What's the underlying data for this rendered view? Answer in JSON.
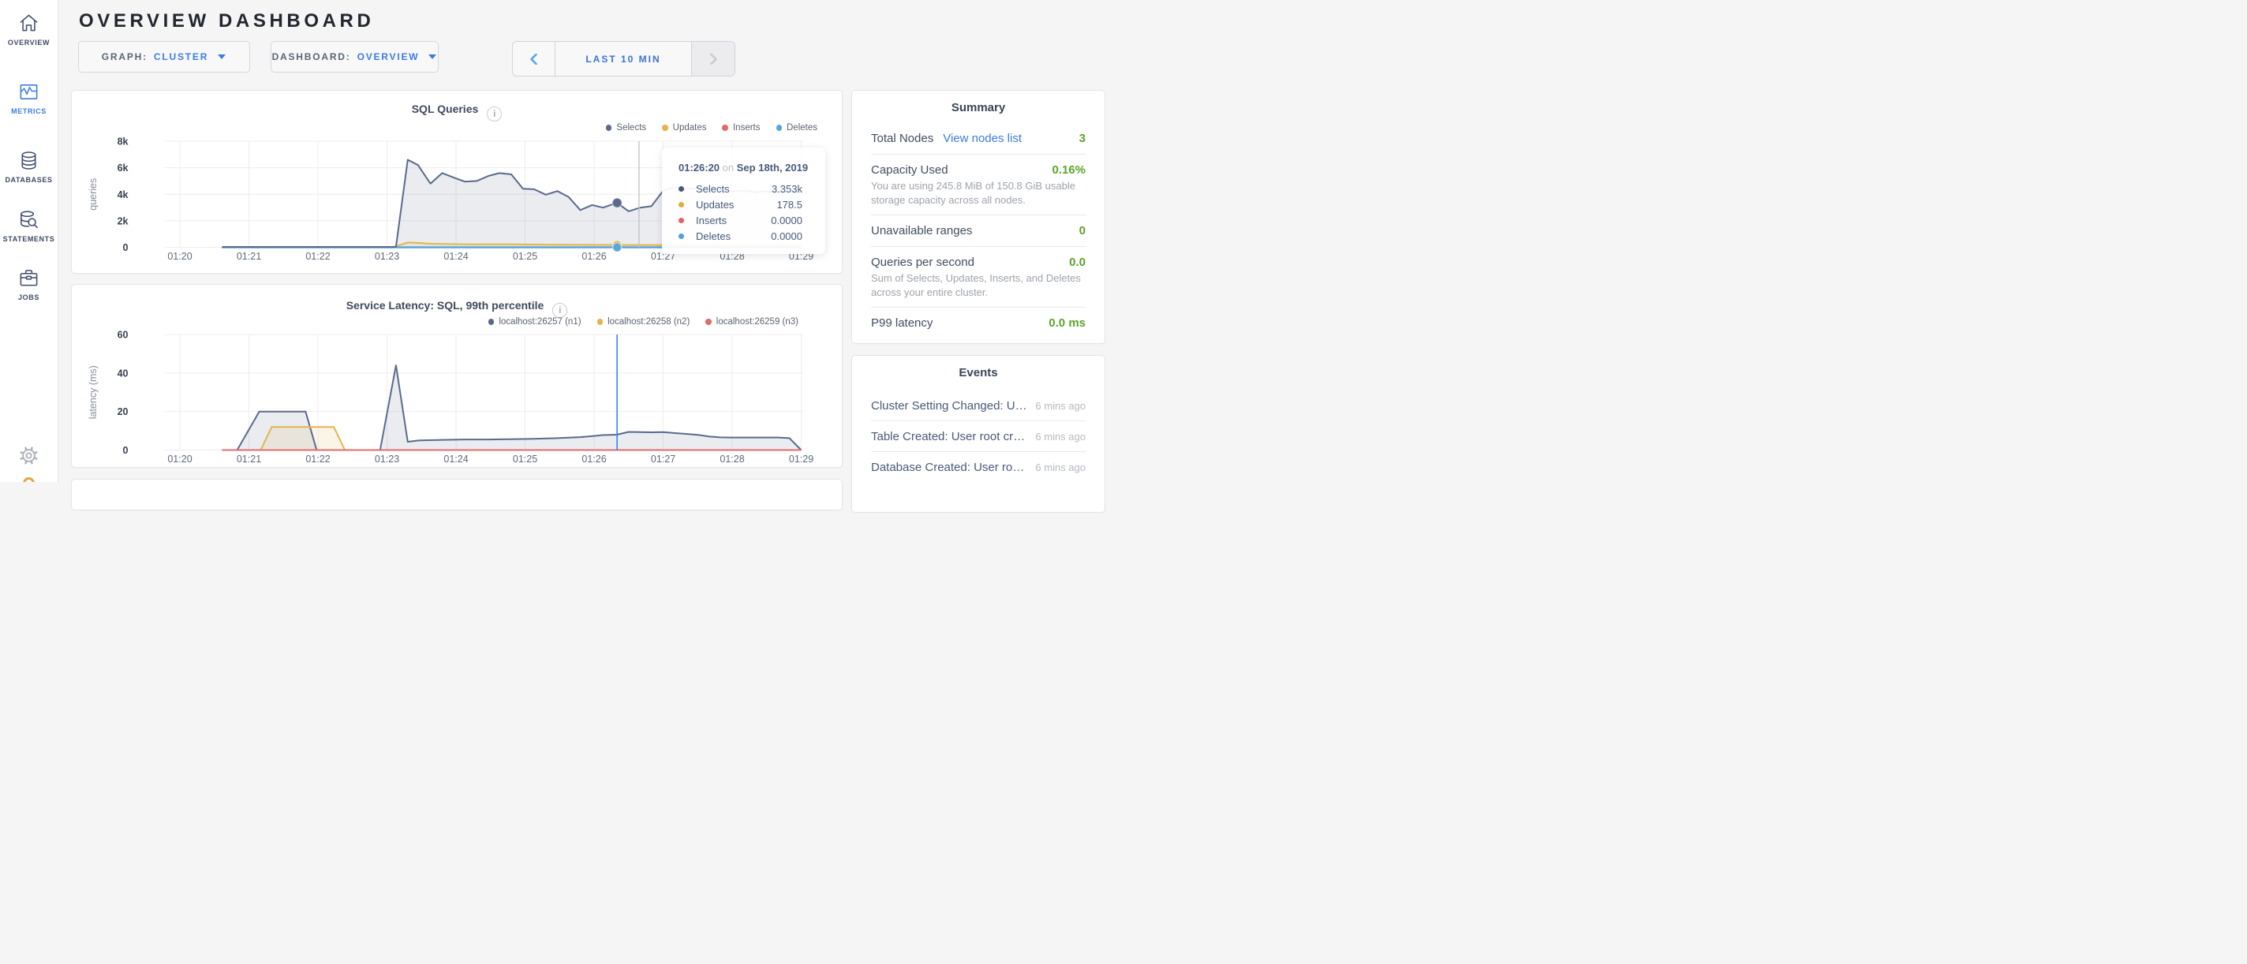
{
  "app": {
    "background": "#f5f5f6",
    "accent_blue": "#3b7ce2",
    "green": "#5ba32a"
  },
  "header": {
    "title": "OVERVIEW DASHBOARD"
  },
  "sidebar": {
    "items": [
      {
        "label": "OVERVIEW",
        "icon": "home-icon",
        "active": false
      },
      {
        "label": "METRICS",
        "icon": "metrics-icon",
        "active": true
      },
      {
        "label": "DATABASES",
        "icon": "databases-icon",
        "active": false
      },
      {
        "label": "STATEMENTS",
        "icon": "statements-icon",
        "active": false
      },
      {
        "label": "JOBS",
        "icon": "jobs-icon",
        "active": false
      }
    ],
    "footer": {
      "gear_icon": "gear-icon",
      "status_icon": "yellow-circle-icon"
    }
  },
  "controls": {
    "graph": {
      "label": "GRAPH:",
      "value": "CLUSTER"
    },
    "dashboard": {
      "label": "DASHBOARD:",
      "value": "OVERVIEW"
    },
    "time": {
      "label": "LAST 10 MIN",
      "prev_icon": "chevron-left-icon",
      "next_icon": "chevron-right-icon"
    }
  },
  "chart_data": [
    {
      "type": "area",
      "title": "SQL Queries",
      "ylabel": "queries",
      "ylim": [
        0,
        8000
      ],
      "x_unit": "minutes after 01:20",
      "x_domain": [
        -0.223,
        9.034
      ],
      "grid": true,
      "legend_position": "top-right",
      "y_ticks": [
        {
          "v": 0,
          "label": "0"
        },
        {
          "v": 2000,
          "label": "2k"
        },
        {
          "v": 4000,
          "label": "4k"
        },
        {
          "v": 6000,
          "label": "6k"
        },
        {
          "v": 8000,
          "label": "8k"
        }
      ],
      "x_ticks": [
        {
          "t": 0,
          "label": "01:20"
        },
        {
          "t": 1,
          "label": "01:21"
        },
        {
          "t": 2,
          "label": "01:22"
        },
        {
          "t": 3,
          "label": "01:23"
        },
        {
          "t": 4,
          "label": "01:24"
        },
        {
          "t": 5,
          "label": "01:25"
        },
        {
          "t": 6,
          "label": "01:26"
        },
        {
          "t": 7,
          "label": "01:27"
        },
        {
          "t": 8,
          "label": "01:28"
        },
        {
          "t": 9,
          "label": "01:29"
        }
      ],
      "series": [
        {
          "name": "Selects",
          "color": "#5a6a8c",
          "fill": "rgba(90,106,140,0.13)",
          "z": 10,
          "points": [
            [
              0.61,
              30
            ],
            [
              1.2,
              30
            ],
            [
              1.7,
              30
            ],
            [
              2.2,
              30
            ],
            [
              2.7,
              30
            ],
            [
              3.08,
              30
            ],
            [
              3.13,
              40
            ],
            [
              3.3,
              6600
            ],
            [
              3.45,
              6200
            ],
            [
              3.63,
              4800
            ],
            [
              3.8,
              5600
            ],
            [
              3.97,
              5250
            ],
            [
              4.13,
              4950
            ],
            [
              4.3,
              5000
            ],
            [
              4.47,
              5380
            ],
            [
              4.63,
              5600
            ],
            [
              4.8,
              5500
            ],
            [
              4.97,
              4420
            ],
            [
              5.13,
              4380
            ],
            [
              5.3,
              3970
            ],
            [
              5.47,
              4240
            ],
            [
              5.63,
              3800
            ],
            [
              5.8,
              2810
            ],
            [
              5.97,
              3190
            ],
            [
              6.13,
              2990
            ],
            [
              6.33,
              3353
            ],
            [
              6.5,
              2720
            ],
            [
              6.67,
              2990
            ],
            [
              6.83,
              3100
            ],
            [
              7.0,
              4260
            ],
            [
              7.17,
              4550
            ],
            [
              7.33,
              4380
            ],
            [
              7.5,
              4480
            ],
            [
              7.67,
              4300
            ],
            [
              7.83,
              4380
            ],
            [
              8.0,
              4220
            ],
            [
              8.17,
              4280
            ],
            [
              8.33,
              4150
            ],
            [
              8.5,
              4230
            ],
            [
              8.67,
              4100
            ],
            [
              8.83,
              4180
            ],
            [
              9.0,
              4120
            ]
          ]
        },
        {
          "name": "Updates",
          "color": "#e3b54a",
          "fill": "rgba(227,181,74,0.13)",
          "points": [
            [
              0.61,
              0
            ],
            [
              1.5,
              0
            ],
            [
              2.2,
              0
            ],
            [
              3.08,
              0
            ],
            [
              3.3,
              360
            ],
            [
              3.47,
              330
            ],
            [
              3.63,
              270
            ],
            [
              3.97,
              235
            ],
            [
              4.3,
              225
            ],
            [
              4.63,
              230
            ],
            [
              4.97,
              215
            ],
            [
              5.3,
              200
            ],
            [
              5.63,
              190
            ],
            [
              5.97,
              182
            ],
            [
              6.33,
              178.5
            ],
            [
              6.67,
              172
            ],
            [
              7.0,
              170
            ],
            [
              7.5,
              168
            ],
            [
              8.0,
              170
            ],
            [
              8.5,
              166
            ],
            [
              9.0,
              170
            ]
          ]
        },
        {
          "name": "Inserts",
          "color": "#e06c6c",
          "fill": "none",
          "points": [
            [
              0.61,
              0
            ],
            [
              9.0,
              0
            ]
          ]
        },
        {
          "name": "Deletes",
          "color": "#58a6da",
          "fill": "none",
          "width": 2.6,
          "points": [
            [
              0.61,
              0
            ],
            [
              9.0,
              0
            ]
          ]
        }
      ],
      "hover": {
        "guideline_t": 6.65,
        "guideline_color": "#c2c4c9",
        "dot_t": 6.333,
        "dot_values": [
          3353,
          178.5,
          0,
          0
        ]
      }
    },
    {
      "type": "area",
      "title": "Service Latency: SQL, 99th percentile",
      "ylabel": "latency (ms)",
      "ylim": [
        0,
        60
      ],
      "x_unit": "minutes after 01:20",
      "x_domain": [
        -0.223,
        9.034
      ],
      "grid": true,
      "legend_position": "top-right",
      "y_ticks": [
        {
          "v": 0,
          "label": "0"
        },
        {
          "v": 20,
          "label": "20"
        },
        {
          "v": 40,
          "label": "40"
        },
        {
          "v": 60,
          "label": "60"
        }
      ],
      "x_ticks": [
        {
          "t": 0,
          "label": "01:20"
        },
        {
          "t": 1,
          "label": "01:21"
        },
        {
          "t": 2,
          "label": "01:22"
        },
        {
          "t": 3,
          "label": "01:23"
        },
        {
          "t": 4,
          "label": "01:24"
        },
        {
          "t": 5,
          "label": "01:25"
        },
        {
          "t": 6,
          "label": "01:26"
        },
        {
          "t": 7,
          "label": "01:27"
        },
        {
          "t": 8,
          "label": "01:28"
        },
        {
          "t": 9,
          "label": "01:29"
        }
      ],
      "series": [
        {
          "name": "localhost:26257 (n1)",
          "color": "#5a6a8c",
          "fill": "rgba(90,106,140,0.13)",
          "points": [
            [
              0.61,
              0
            ],
            [
              0.83,
              0
            ],
            [
              1.15,
              20
            ],
            [
              1.5,
              20
            ],
            [
              1.82,
              20
            ],
            [
              1.98,
              0
            ],
            [
              2.47,
              0
            ],
            [
              2.9,
              0
            ],
            [
              3.13,
              44
            ],
            [
              3.3,
              4.3
            ],
            [
              3.47,
              5.0
            ],
            [
              3.8,
              5.3
            ],
            [
              4.13,
              5.5
            ],
            [
              4.47,
              5.5
            ],
            [
              4.8,
              5.6
            ],
            [
              5.13,
              5.8
            ],
            [
              5.47,
              6.2
            ],
            [
              5.8,
              6.7
            ],
            [
              5.97,
              7.2
            ],
            [
              6.13,
              7.8
            ],
            [
              6.33,
              8.0
            ],
            [
              6.5,
              9.4
            ],
            [
              6.67,
              9.3
            ],
            [
              6.83,
              9.2
            ],
            [
              7.0,
              9.3
            ],
            [
              7.17,
              8.8
            ],
            [
              7.33,
              8.4
            ],
            [
              7.5,
              7.9
            ],
            [
              7.67,
              7.0
            ],
            [
              7.83,
              6.6
            ],
            [
              8.0,
              6.5
            ],
            [
              8.3,
              6.5
            ],
            [
              8.67,
              6.5
            ],
            [
              8.83,
              6.2
            ],
            [
              9.0,
              0
            ]
          ]
        },
        {
          "name": "localhost:26258 (n2)",
          "color": "#e3b54a",
          "fill": "rgba(227,181,74,0.13)",
          "points": [
            [
              0.61,
              0
            ],
            [
              1.17,
              0
            ],
            [
              1.33,
              12
            ],
            [
              1.8,
              12
            ],
            [
              2.23,
              12
            ],
            [
              2.39,
              0
            ],
            [
              2.6,
              0
            ],
            [
              9.0,
              0
            ]
          ]
        },
        {
          "name": "localhost:26259 (n3)",
          "color": "#e06c6c",
          "fill": "none",
          "points": [
            [
              0.61,
              0
            ],
            [
              9.0,
              0
            ]
          ]
        }
      ],
      "hover": {
        "line_t": 6.333,
        "line_color": "#3f7df0"
      }
    }
  ],
  "tooltip": {
    "time": "01:26:20",
    "joiner": "on",
    "date": "Sep 18th, 2019",
    "rows": [
      {
        "name": "Selects",
        "color": "#4a5876",
        "value": "3.353k"
      },
      {
        "name": "Updates",
        "color": "#e3ab33",
        "value": "178.5"
      },
      {
        "name": "Inserts",
        "color": "#e06161",
        "value": "0.0000"
      },
      {
        "name": "Deletes",
        "color": "#4d9fdd",
        "value": "0.0000"
      }
    ]
  },
  "summary": {
    "title": "Summary",
    "rows": [
      {
        "label": "Total Nodes",
        "link": "View nodes list",
        "value": "3"
      },
      {
        "label": "Capacity Used",
        "value": "0.16%",
        "sub": "You are using 245.8 MiB of 150.8 GiB usable storage capacity across all nodes."
      },
      {
        "label": "Unavailable ranges",
        "value": "0"
      },
      {
        "label": "Queries per second",
        "value": "0.0",
        "sub": "Sum of Selects, Updates, Inserts, and Deletes across your entire cluster."
      },
      {
        "label": "P99 latency",
        "value": "0.0 ms"
      }
    ]
  },
  "events": {
    "title": "Events",
    "rows": [
      {
        "text": "Cluster Setting Changed: U…",
        "time": "6 mins ago"
      },
      {
        "text": "Table Created: User root cr…",
        "time": "6 mins ago"
      },
      {
        "text": "Database Created: User ro…",
        "time": "6 mins ago"
      }
    ]
  }
}
